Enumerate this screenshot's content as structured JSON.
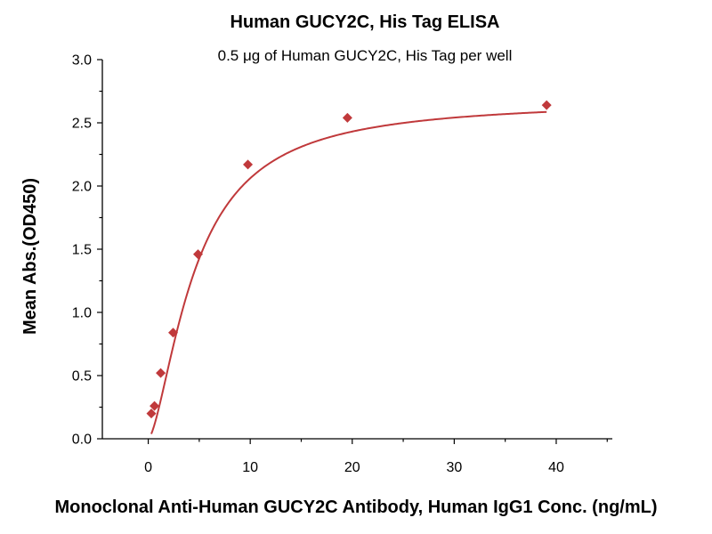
{
  "chart_data": {
    "type": "scatter",
    "title": "Human GUCY2C, His Tag ELISA",
    "subtitle": "0.5 μg of Human GUCY2C, His Tag per well",
    "xlabel": "Monoclonal Anti-Human GUCY2C Antibody, Human IgG1 Conc. (ng/mL)",
    "ylabel": "Mean Abs.(OD450)",
    "xlim": [
      -4.5,
      45.5
    ],
    "ylim": [
      0,
      3.0
    ],
    "x_ticks": [
      0,
      10,
      20,
      30,
      40
    ],
    "y_ticks": [
      0.0,
      0.5,
      1.0,
      1.5,
      2.0,
      2.5,
      3.0
    ],
    "grid": false,
    "marker_color": "#c0393b",
    "curve_color": "#c0393b",
    "series": [
      {
        "x": [
          0.3,
          0.61,
          1.22,
          2.44,
          4.88,
          9.77,
          19.53,
          39.06
        ],
        "y": [
          0.2,
          0.26,
          0.52,
          0.84,
          1.46,
          2.17,
          2.54,
          2.64
        ],
        "fit": "4-parameter logistic"
      }
    ]
  }
}
